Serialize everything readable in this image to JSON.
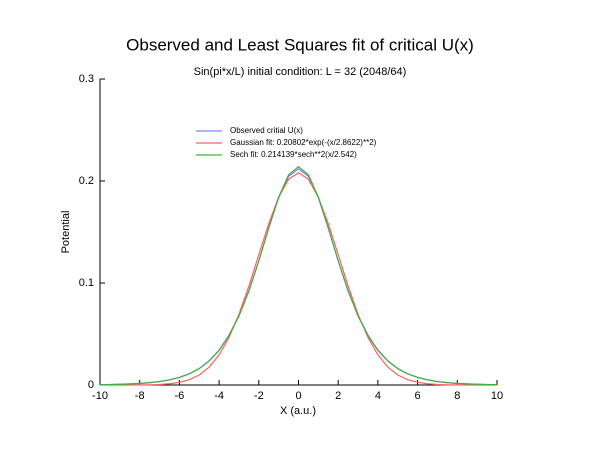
{
  "chart_data": {
    "type": "line",
    "title": "Observed and Least Squares fit of critical U(x)",
    "subtitle": "Sin(pi*x/L) initial condition:  L = 32 (2048/64)",
    "x_label": "X (a.u.)",
    "y_label": "Potential",
    "x": [
      -10,
      -9.5,
      -9,
      -8.5,
      -8,
      -7.5,
      -7,
      -6.5,
      -6,
      -5.5,
      -5,
      -4.5,
      -4,
      -3.5,
      -3,
      -2.5,
      -2,
      -1.5,
      -1,
      -0.5,
      0,
      0.5,
      1,
      1.5,
      2,
      2.5,
      3,
      3.5,
      4,
      4.5,
      5,
      5.5,
      6,
      6.5,
      7,
      7.5,
      8,
      8.5,
      9,
      9.5,
      10
    ],
    "series": [
      {
        "name": "Observed critial U(x)",
        "color": "#8080ff",
        "values": [
          0.0003,
          0.0004,
          0.0007,
          0.001,
          0.0015,
          0.0022,
          0.0033,
          0.005,
          0.0074,
          0.011,
          0.0162,
          0.0238,
          0.0343,
          0.049,
          0.068,
          0.0925,
          0.1218,
          0.1538,
          0.1835,
          0.2045,
          0.212,
          0.2045,
          0.1835,
          0.1538,
          0.1218,
          0.0925,
          0.068,
          0.049,
          0.0343,
          0.0238,
          0.0162,
          0.011,
          0.0074,
          0.005,
          0.0033,
          0.0022,
          0.0015,
          0.001,
          0.0007,
          0.0004,
          0.0003
        ]
      },
      {
        "name": "Gaussian fit:  0.20802*exp(-(x/2.8622)**2)",
        "color": "#ff6060",
        "values": [
          0,
          0,
          0,
          0,
          0.0001,
          0.0002,
          0.0005,
          0.0012,
          0.0026,
          0.0052,
          0.0098,
          0.0176,
          0.0295,
          0.0466,
          0.0693,
          0.097,
          0.1277,
          0.1581,
          0.1841,
          0.2018,
          0.208,
          0.2018,
          0.1841,
          0.1581,
          0.1277,
          0.097,
          0.0693,
          0.0466,
          0.0295,
          0.0176,
          0.0098,
          0.0052,
          0.0026,
          0.0012,
          0.0005,
          0.0002,
          0.0001,
          0,
          0,
          0,
          0
        ]
      },
      {
        "name": "Sech fit: 0.214139*sech**2(x/2.542)",
        "color": "#40b040",
        "values": [
          0.0003,
          0.0005,
          0.0007,
          0.0011,
          0.0016,
          0.0023,
          0.0034,
          0.0051,
          0.0075,
          0.011,
          0.0161,
          0.0235,
          0.0338,
          0.0485,
          0.0675,
          0.092,
          0.1216,
          0.1539,
          0.1842,
          0.2061,
          0.2141,
          0.2061,
          0.1842,
          0.1539,
          0.1216,
          0.092,
          0.0675,
          0.0485,
          0.0338,
          0.0235,
          0.0161,
          0.011,
          0.0075,
          0.0051,
          0.0034,
          0.0023,
          0.0016,
          0.0011,
          0.0007,
          0.0005,
          0.0003
        ]
      }
    ],
    "xlim": [
      -10,
      10
    ],
    "xticks": [
      -10,
      -8,
      -6,
      -4,
      -2,
      0,
      2,
      4,
      6,
      8,
      10
    ],
    "ylim": [
      0,
      0.3
    ],
    "yticks": [
      0,
      0.1,
      0.2,
      0.3
    ]
  }
}
